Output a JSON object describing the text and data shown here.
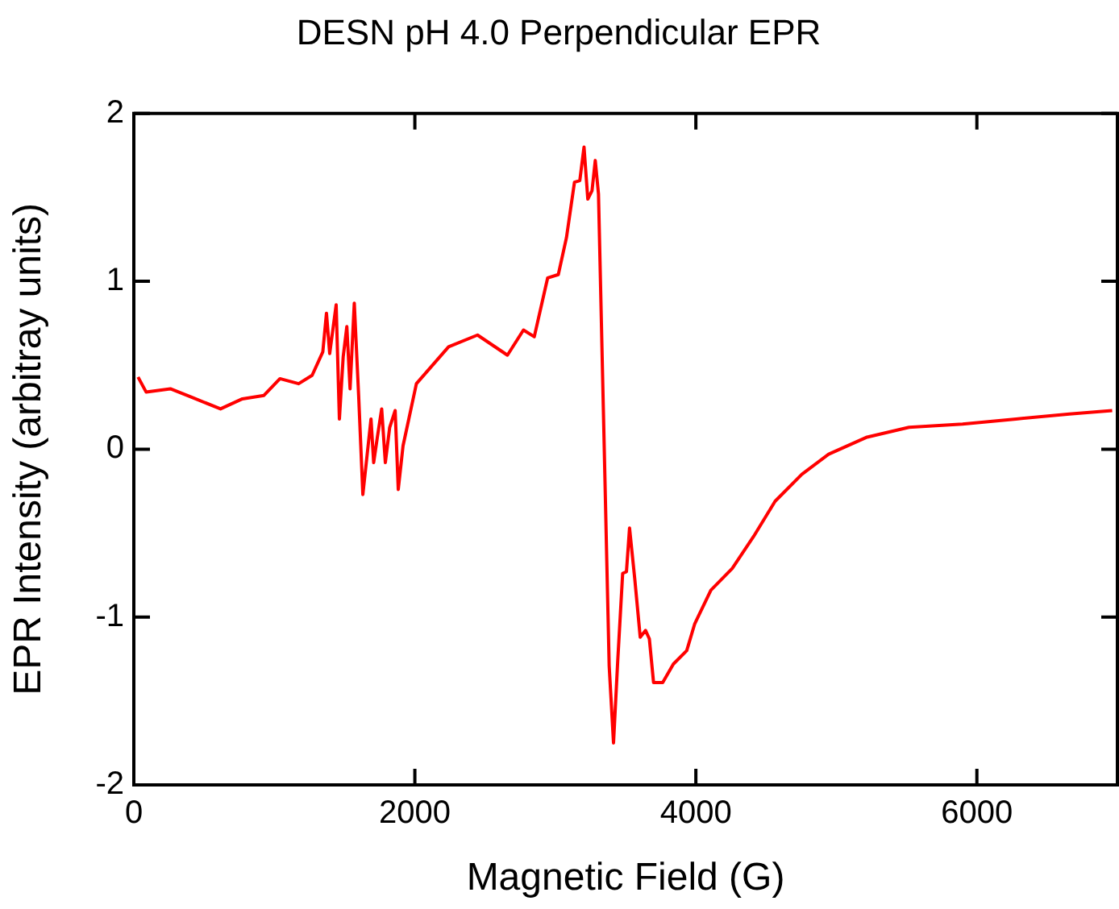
{
  "chart_data": {
    "type": "line",
    "title": "DESN pH 4.0 Perpendicular EPR",
    "xlabel": "Magnetic Field (G)",
    "ylabel": "EPR Intensity (arbitray units)",
    "xlim": [
      0,
      7000
    ],
    "xticks": [
      0,
      2000,
      4000,
      6000
    ],
    "ylim": [
      -2,
      2
    ],
    "yticks": [
      -2,
      -1,
      0,
      1,
      2
    ],
    "marker": "none",
    "series": [
      {
        "color": "#ff0000",
        "x": [
          30,
          88,
          260,
          411,
          617,
          773,
          926,
          1040,
          1173,
          1269,
          1345,
          1371,
          1394,
          1440,
          1463,
          1490,
          1516,
          1539,
          1569,
          1600,
          1630,
          1688,
          1707,
          1733,
          1764,
          1790,
          1821,
          1860,
          1882,
          1916,
          2011,
          2240,
          2446,
          2659,
          2773,
          2850,
          2945,
          3021,
          3079,
          3136,
          3174,
          3204,
          3231,
          3261,
          3284,
          3307,
          3383,
          3414,
          3444,
          3479,
          3506,
          3528,
          3566,
          3604,
          3642,
          3669,
          3699,
          3764,
          3840,
          3935,
          3992,
          4107,
          4259,
          4411,
          4564,
          4754,
          4945,
          5212,
          5517,
          5898,
          6279,
          6659,
          6963
        ],
        "values": [
          0.43,
          0.34,
          0.36,
          0.31,
          0.24,
          0.3,
          0.32,
          0.42,
          0.39,
          0.44,
          0.58,
          0.81,
          0.57,
          0.86,
          0.18,
          0.55,
          0.73,
          0.36,
          0.87,
          0.32,
          -0.27,
          0.18,
          -0.08,
          0.07,
          0.24,
          -0.08,
          0.13,
          0.23,
          -0.24,
          0.02,
          0.39,
          0.61,
          0.68,
          0.56,
          0.71,
          0.67,
          1.02,
          1.04,
          1.26,
          1.59,
          1.6,
          1.8,
          1.49,
          1.54,
          1.72,
          1.52,
          -1.29,
          -1.75,
          -1.26,
          -0.74,
          -0.73,
          -0.47,
          -0.78,
          -1.12,
          -1.08,
          -1.13,
          -1.39,
          -1.39,
          -1.28,
          -1.2,
          -1.04,
          -0.84,
          -0.71,
          -0.52,
          -0.31,
          -0.15,
          -0.03,
          0.07,
          0.13,
          0.15,
          0.18,
          0.21,
          0.23
        ]
      }
    ]
  }
}
